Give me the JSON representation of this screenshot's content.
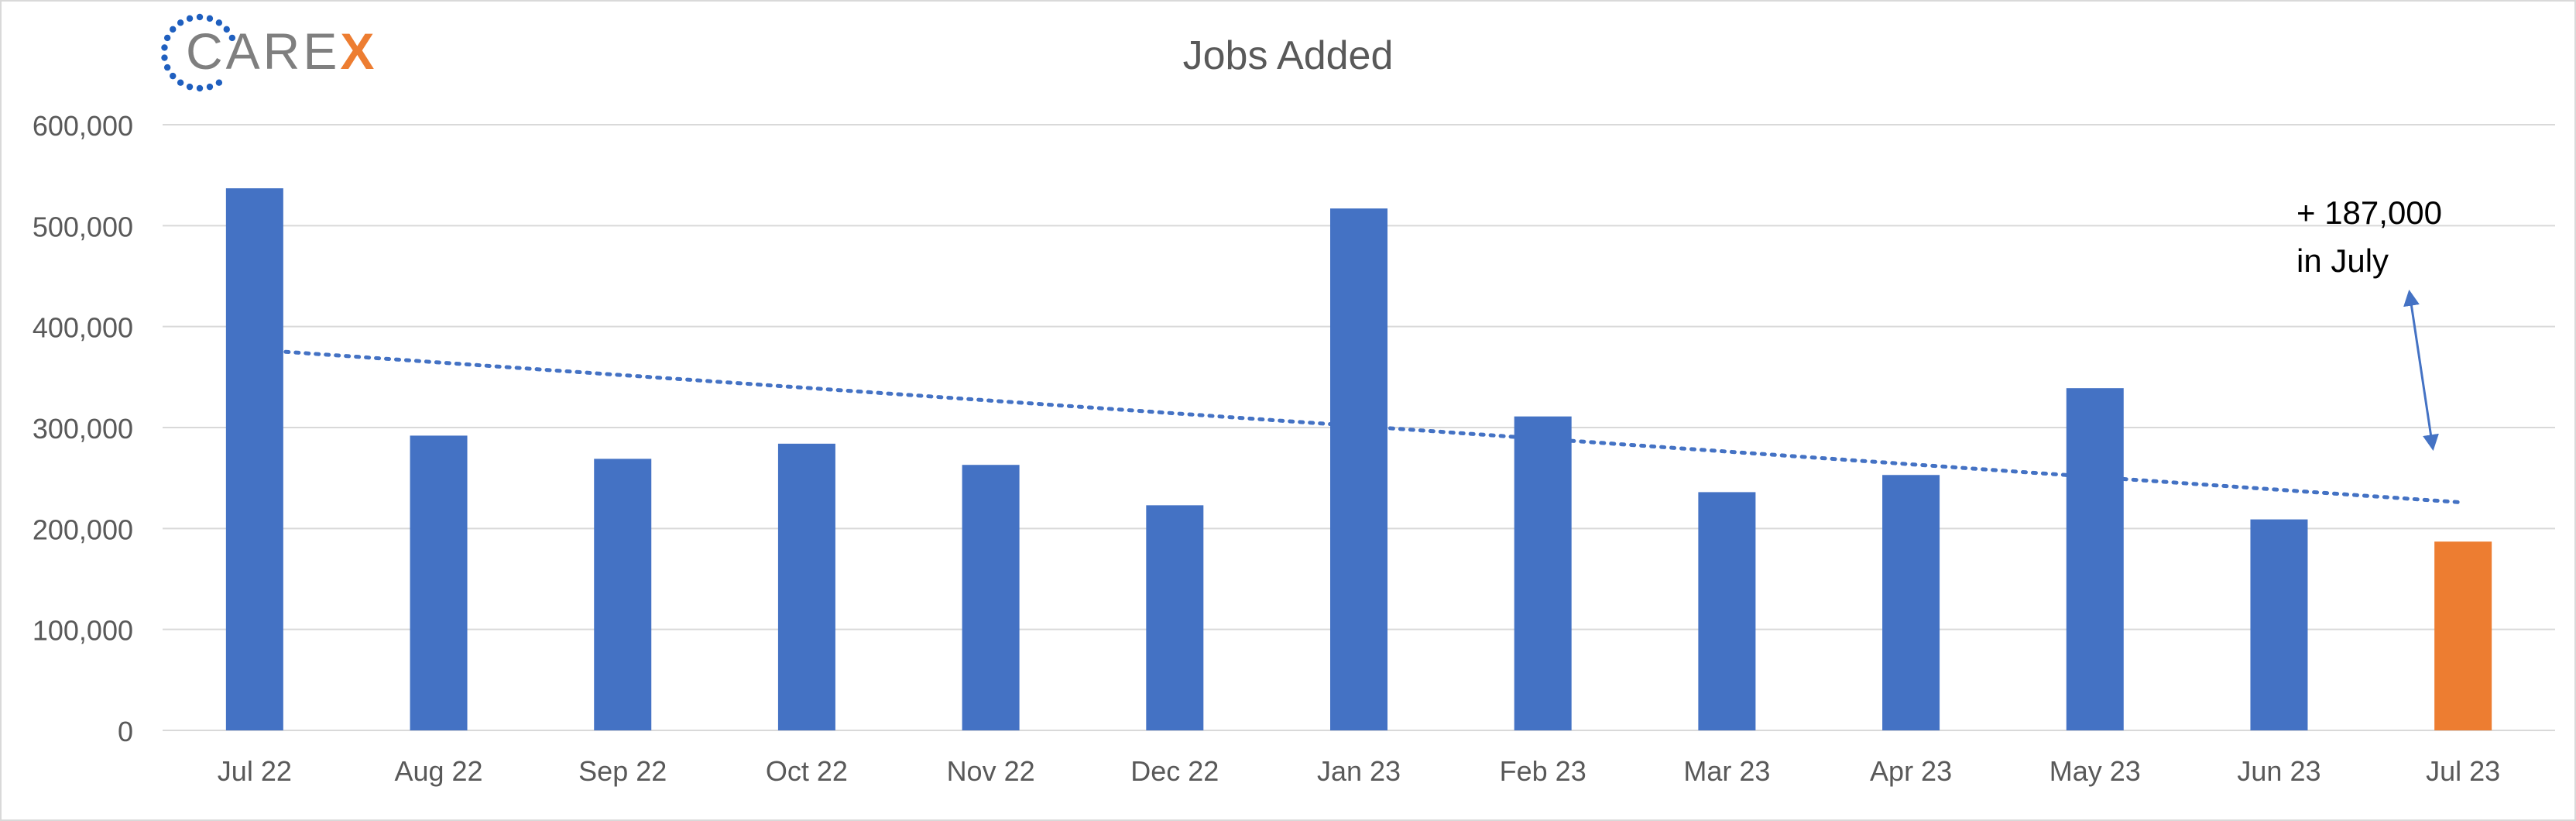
{
  "logo": {
    "text_main": "CARE",
    "text_accent": "X"
  },
  "chart_data": {
    "type": "bar",
    "title": "Jobs Added",
    "xlabel": "",
    "ylabel": "",
    "categories": [
      "Jul 22",
      "Aug 22",
      "Sep 22",
      "Oct 22",
      "Nov 22",
      "Dec 22",
      "Jan 23",
      "Feb 23",
      "Mar 23",
      "Apr 23",
      "May 23",
      "Jun 23",
      "Jul 23"
    ],
    "values": [
      537000,
      292000,
      269000,
      284000,
      263000,
      223000,
      517000,
      311000,
      236000,
      253000,
      339000,
      209000,
      187000
    ],
    "ylim": [
      0,
      600000
    ],
    "yticks": [
      "0",
      "100,000",
      "200,000",
      "300,000",
      "400,000",
      "500,000",
      "600,000"
    ],
    "trendline": {
      "style": "dotted linear",
      "start_value": 375000,
      "end_value": 226000
    },
    "grid": true,
    "colors": {
      "bar": "#4472c4",
      "highlight_bar": "#ed7d31",
      "trendline": "#4472c4",
      "gridline": "#d9d9d9",
      "axis_text": "#595959"
    },
    "highlight_index": 12,
    "annotation": {
      "line1": "+ 187,000",
      "line2": "in July"
    }
  }
}
